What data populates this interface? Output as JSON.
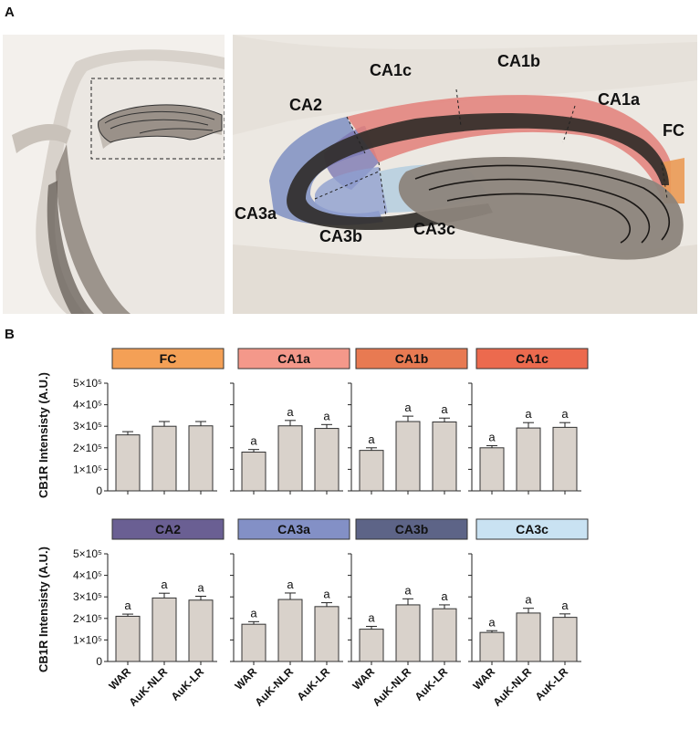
{
  "panel_a_label": "A",
  "panel_b_label": "B",
  "image_regions": [
    {
      "id": "ca1c",
      "label": "CA1c"
    },
    {
      "id": "ca1b",
      "label": "CA1b"
    },
    {
      "id": "ca1a",
      "label": "CA1a"
    },
    {
      "id": "ca2",
      "label": "CA2"
    },
    {
      "id": "fc",
      "label": "FC"
    },
    {
      "id": "ca3a",
      "label": "CA3a"
    },
    {
      "id": "ca3b",
      "label": "CA3b"
    },
    {
      "id": "ca3c",
      "label": "CA3c"
    }
  ],
  "colors": {
    "bar_fill": "#d9d2cb",
    "bar_stroke": "#333333"
  },
  "chart_data": {
    "type": "bar",
    "ylabel": "CB1R Intensisty (A.U.)",
    "categories": [
      "WAR",
      "AuK-NLR",
      "AuK-LR"
    ],
    "ylim": [
      0,
      500000
    ],
    "ytick_labels": [
      "0",
      "1×10⁵",
      "2×10⁵",
      "3×10⁵",
      "4×10⁵",
      "5×10⁵"
    ],
    "panels": [
      {
        "title": "FC",
        "color": "#f4a056",
        "values": [
          260000,
          300000,
          302000
        ],
        "errors": [
          15000,
          22000,
          20000
        ],
        "sig": [
          "",
          "",
          ""
        ]
      },
      {
        "title": "CA1a",
        "color": "#f4988a",
        "values": [
          180000,
          302000,
          290000
        ],
        "errors": [
          12000,
          25000,
          18000
        ],
        "sig": [
          "a",
          "a",
          "a"
        ]
      },
      {
        "title": "CA1b",
        "color": "#e87a52",
        "values": [
          188000,
          322000,
          320000
        ],
        "errors": [
          12000,
          25000,
          18000
        ],
        "sig": [
          "a",
          "a",
          "a"
        ]
      },
      {
        "title": "CA1c",
        "color": "#ec6a4e",
        "values": [
          200000,
          292000,
          295000
        ],
        "errors": [
          10000,
          25000,
          22000
        ],
        "sig": [
          "a",
          "a",
          "a"
        ]
      },
      {
        "title": "CA2",
        "color": "#6a5f93",
        "values": [
          210000,
          295000,
          285000
        ],
        "errors": [
          10000,
          22000,
          18000
        ],
        "sig": [
          "a",
          "a",
          "a"
        ]
      },
      {
        "title": "CA3a",
        "color": "#8390c6",
        "values": [
          173000,
          288000,
          255000
        ],
        "errors": [
          12000,
          30000,
          18000
        ],
        "sig": [
          "a",
          "a",
          "a"
        ]
      },
      {
        "title": "CA3b",
        "color": "#5d6487",
        "values": [
          150000,
          263000,
          245000
        ],
        "errors": [
          13000,
          28000,
          18000
        ],
        "sig": [
          "a",
          "a",
          "a"
        ]
      },
      {
        "title": "CA3c",
        "color": "#c9e2f2",
        "values": [
          135000,
          225000,
          205000
        ],
        "errors": [
          8000,
          22000,
          16000
        ],
        "sig": [
          "a",
          "a",
          "a"
        ]
      }
    ]
  }
}
